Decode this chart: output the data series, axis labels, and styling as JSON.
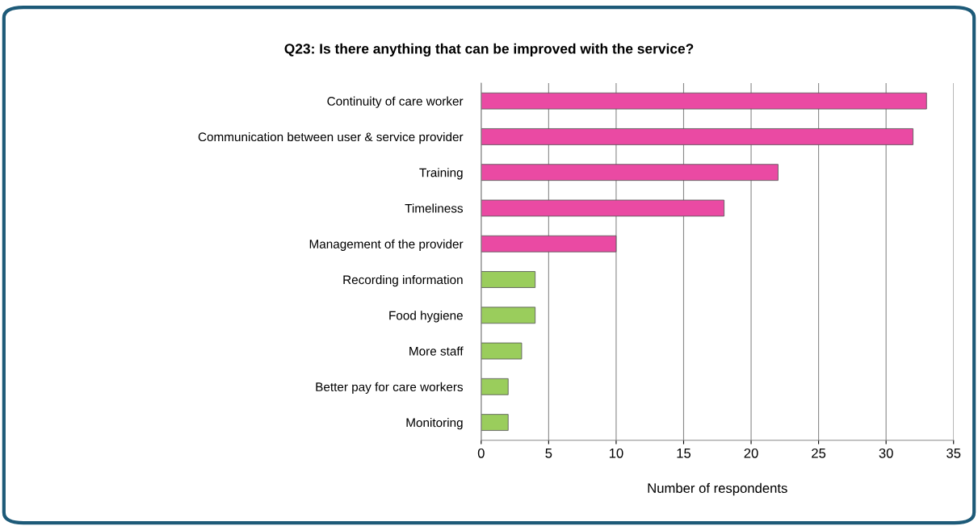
{
  "chart_data": {
    "type": "bar",
    "orientation": "horizontal",
    "title": "Q23: Is there anything that can be improved with the service?",
    "xlabel": "Number of respondents",
    "categories": [
      "Continuity of care worker",
      "Communication between user & service provider",
      "Training",
      "Timeliness",
      "Management of the provider",
      "Recording information",
      "Food hygiene",
      "More staff",
      "Better pay for care workers",
      "Monitoring"
    ],
    "values": [
      33,
      32,
      22,
      18,
      10,
      4,
      4,
      3,
      2,
      2
    ],
    "colors": [
      "#ea4aa3",
      "#ea4aa3",
      "#ea4aa3",
      "#ea4aa3",
      "#ea4aa3",
      "#9acd5c",
      "#9acd5c",
      "#9acd5c",
      "#9acd5c",
      "#9acd5c"
    ],
    "xlim": [
      0,
      35
    ],
    "xticks": [
      0,
      5,
      10,
      15,
      20,
      25,
      30,
      35
    ],
    "grid": "x",
    "legend": false
  }
}
